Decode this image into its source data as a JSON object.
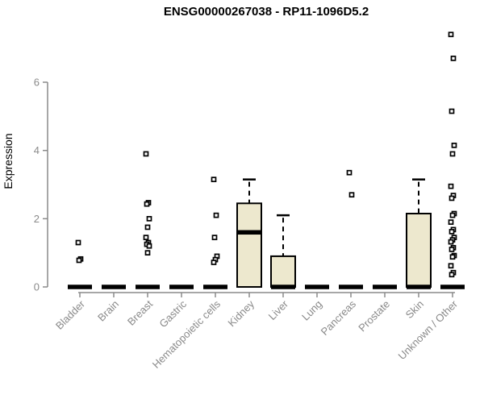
{
  "chart_data": {
    "type": "boxplot",
    "title": "ENSG00000267038 - RP11-1096D5.2",
    "ylabel": "Expression",
    "xlabel": "",
    "ylim": [
      0,
      7.5
    ],
    "yticks": [
      0,
      2,
      4,
      6
    ],
    "grid": false,
    "legend": "none",
    "colors": {
      "box_fill": "#EDE8CE",
      "box_stroke": "#000000",
      "median": "#000000",
      "outlier_stroke": "#000000",
      "axis": "#8A8A8A",
      "title": "#000000",
      "background": "#FFFFFF"
    },
    "categories": [
      "Bladder",
      "Brain",
      "Breast",
      "Gastric",
      "Hematopoietic cells",
      "Kidney",
      "Liver",
      "Lung",
      "Pancreas",
      "Prostate",
      "Skin",
      "Unknown / Other"
    ],
    "boxes": [
      {
        "category": "Bladder",
        "q1": 0,
        "median": 0,
        "q3": 0,
        "whisker_low": 0,
        "whisker_high": 0,
        "outliers": [
          1.3,
          0.82,
          0.78
        ]
      },
      {
        "category": "Brain",
        "q1": 0,
        "median": 0,
        "q3": 0,
        "whisker_low": 0,
        "whisker_high": 0,
        "outliers": []
      },
      {
        "category": "Breast",
        "q1": 0,
        "median": 0,
        "q3": 0,
        "whisker_low": 0,
        "whisker_high": 0,
        "outliers": [
          3.9,
          2.47,
          2.43,
          2.0,
          1.75,
          1.45,
          1.3,
          1.25,
          1.2,
          1.0
        ]
      },
      {
        "category": "Gastric",
        "q1": 0,
        "median": 0,
        "q3": 0,
        "whisker_low": 0,
        "whisker_high": 0,
        "outliers": []
      },
      {
        "category": "Hematopoietic cells",
        "q1": 0,
        "median": 0,
        "q3": 0,
        "whisker_low": 0,
        "whisker_high": 0,
        "outliers": [
          3.15,
          2.1,
          1.45,
          0.9,
          0.8,
          0.72
        ]
      },
      {
        "category": "Kidney",
        "q1": 0,
        "median": 1.6,
        "q3": 2.45,
        "whisker_low": 0,
        "whisker_high": 3.15,
        "outliers": []
      },
      {
        "category": "Liver",
        "q1": 0,
        "median": 0,
        "q3": 0.9,
        "whisker_low": 0,
        "whisker_high": 2.1,
        "outliers": []
      },
      {
        "category": "Lung",
        "q1": 0,
        "median": 0,
        "q3": 0,
        "whisker_low": 0,
        "whisker_high": 0,
        "outliers": []
      },
      {
        "category": "Pancreas",
        "q1": 0,
        "median": 0,
        "q3": 0,
        "whisker_low": 0,
        "whisker_high": 0,
        "outliers": [
          3.35,
          2.7
        ]
      },
      {
        "category": "Prostate",
        "q1": 0,
        "median": 0,
        "q3": 0,
        "whisker_low": 0,
        "whisker_high": 0,
        "outliers": []
      },
      {
        "category": "Skin",
        "q1": 0,
        "median": 0,
        "q3": 2.15,
        "whisker_low": 0,
        "whisker_high": 3.15,
        "outliers": []
      },
      {
        "category": "Unknown / Other",
        "q1": 0,
        "median": 0,
        "q3": 0,
        "whisker_low": 0,
        "whisker_high": 0,
        "outliers": [
          7.4,
          6.7,
          5.15,
          4.15,
          3.9,
          2.95,
          2.68,
          2.6,
          2.15,
          2.1,
          1.9,
          1.68,
          1.62,
          1.45,
          1.38,
          1.32,
          1.15,
          1.1,
          0.92,
          0.88,
          0.62,
          0.42,
          0.36
        ]
      }
    ]
  }
}
